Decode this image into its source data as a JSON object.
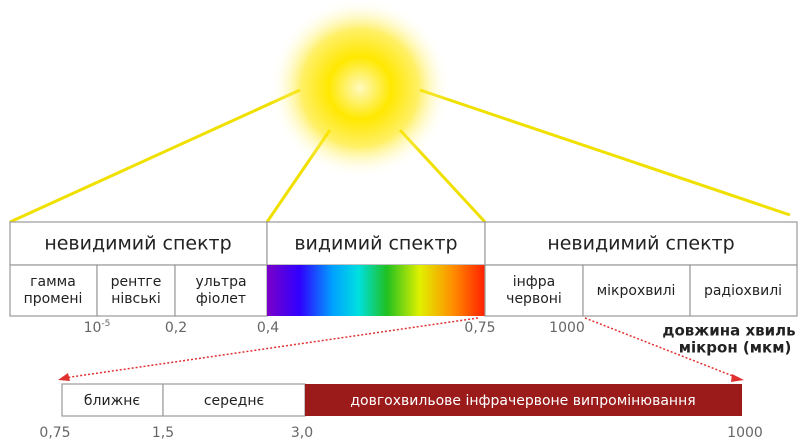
{
  "top_table": {
    "headers": [
      "невидимий спектр",
      "видимий спектр",
      "невидимий спектр"
    ],
    "cells": [
      [
        "гамма",
        "промені"
      ],
      [
        "рентге",
        "нівські"
      ],
      [
        "ультра",
        "фіолет"
      ],
      [
        "інфра",
        "червоні"
      ],
      [
        "мікрохвилі"
      ],
      [
        "радіохвилі"
      ]
    ]
  },
  "top_scale": {
    "exponent_label": {
      "base": "10",
      "exponent": "-5"
    },
    "labels": [
      "0,2",
      "0,4",
      "0,75",
      "1000"
    ],
    "unit_lines": [
      "довжина хвиль",
      "мікрон (мкм)"
    ]
  },
  "bottom_bar": {
    "cells": [
      "ближнє",
      "середнє",
      "довгохвильове інфрачервоне випромінювання"
    ],
    "labels": [
      "0,75",
      "1,5",
      "3,0",
      "1000"
    ]
  }
}
